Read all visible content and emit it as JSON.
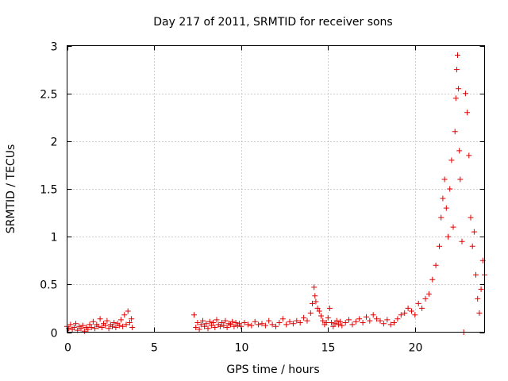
{
  "chart_data": {
    "type": "scatter",
    "title": "Day 217 of 2011, SRMTID for receiver sons",
    "xlabel": "GPS time / hours",
    "ylabel": "SRMTID / TECUs",
    "xlim": [
      0,
      24
    ],
    "ylim": [
      0,
      3
    ],
    "xticks": [
      0,
      5,
      10,
      15,
      20
    ],
    "yticks": [
      0,
      0.5,
      1,
      1.5,
      2,
      2.5,
      3
    ],
    "xtick_labels": [
      "0",
      "5",
      "10",
      "15",
      "20"
    ],
    "ytick_labels": [
      "0",
      "0.5",
      "1",
      "1.5",
      "2",
      "2.5",
      "3"
    ],
    "grid": true,
    "marker": "plus",
    "color": "#e00000",
    "points": [
      [
        0.0,
        0.06
      ],
      [
        0.1,
        0.04
      ],
      [
        0.2,
        0.08
      ],
      [
        0.3,
        0.03
      ],
      [
        0.4,
        0.05
      ],
      [
        0.5,
        0.09
      ],
      [
        0.6,
        0.02
      ],
      [
        0.7,
        0.06
      ],
      [
        0.8,
        0.04
      ],
      [
        0.9,
        0.07
      ],
      [
        1.0,
        0.01
      ],
      [
        1.1,
        0.05
      ],
      [
        1.2,
        0.03
      ],
      [
        1.3,
        0.08
      ],
      [
        1.4,
        0.05
      ],
      [
        1.5,
        0.11
      ],
      [
        1.6,
        0.04
      ],
      [
        1.7,
        0.08
      ],
      [
        1.8,
        0.06
      ],
      [
        1.9,
        0.14
      ],
      [
        2.0,
        0.05
      ],
      [
        2.1,
        0.09
      ],
      [
        2.2,
        0.07
      ],
      [
        2.3,
        0.12
      ],
      [
        2.4,
        0.04
      ],
      [
        2.5,
        0.08
      ],
      [
        2.6,
        0.06
      ],
      [
        2.7,
        0.1
      ],
      [
        2.8,
        0.05
      ],
      [
        2.9,
        0.09
      ],
      [
        3.0,
        0.07
      ],
      [
        3.1,
        0.13
      ],
      [
        3.2,
        0.06
      ],
      [
        3.3,
        0.18
      ],
      [
        3.4,
        0.08
      ],
      [
        3.5,
        0.22
      ],
      [
        3.6,
        0.1
      ],
      [
        3.7,
        0.14
      ],
      [
        3.75,
        0.05
      ],
      [
        7.3,
        0.18
      ],
      [
        7.4,
        0.05
      ],
      [
        7.5,
        0.1
      ],
      [
        7.6,
        0.03
      ],
      [
        7.7,
        0.08
      ],
      [
        7.8,
        0.12
      ],
      [
        7.9,
        0.06
      ],
      [
        8.0,
        0.09
      ],
      [
        8.1,
        0.04
      ],
      [
        8.2,
        0.11
      ],
      [
        8.3,
        0.07
      ],
      [
        8.4,
        0.1
      ],
      [
        8.5,
        0.05
      ],
      [
        8.6,
        0.13
      ],
      [
        8.7,
        0.08
      ],
      [
        8.8,
        0.06
      ],
      [
        8.9,
        0.1
      ],
      [
        9.0,
        0.07
      ],
      [
        9.1,
        0.12
      ],
      [
        9.2,
        0.05
      ],
      [
        9.3,
        0.09
      ],
      [
        9.4,
        0.08
      ],
      [
        9.5,
        0.11
      ],
      [
        9.6,
        0.06
      ],
      [
        9.7,
        0.1
      ],
      [
        9.8,
        0.07
      ],
      [
        9.9,
        0.09
      ],
      [
        10.0,
        0.06
      ],
      [
        10.2,
        0.1
      ],
      [
        10.4,
        0.08
      ],
      [
        10.6,
        0.07
      ],
      [
        10.8,
        0.11
      ],
      [
        11.0,
        0.08
      ],
      [
        11.2,
        0.09
      ],
      [
        11.4,
        0.07
      ],
      [
        11.6,
        0.12
      ],
      [
        11.8,
        0.08
      ],
      [
        12.0,
        0.06
      ],
      [
        12.2,
        0.1
      ],
      [
        12.4,
        0.14
      ],
      [
        12.6,
        0.08
      ],
      [
        12.8,
        0.11
      ],
      [
        13.0,
        0.09
      ],
      [
        13.2,
        0.12
      ],
      [
        13.4,
        0.1
      ],
      [
        13.6,
        0.15
      ],
      [
        13.8,
        0.12
      ],
      [
        14.0,
        0.2
      ],
      [
        14.1,
        0.3
      ],
      [
        14.2,
        0.47
      ],
      [
        14.25,
        0.38
      ],
      [
        14.3,
        0.32
      ],
      [
        14.4,
        0.25
      ],
      [
        14.5,
        0.22
      ],
      [
        14.6,
        0.17
      ],
      [
        14.7,
        0.12
      ],
      [
        14.8,
        0.08
      ],
      [
        14.9,
        0.1
      ],
      [
        15.0,
        0.15
      ],
      [
        15.1,
        0.25
      ],
      [
        15.2,
        0.1
      ],
      [
        15.3,
        0.06
      ],
      [
        15.4,
        0.09
      ],
      [
        15.5,
        0.12
      ],
      [
        15.6,
        0.08
      ],
      [
        15.7,
        0.11
      ],
      [
        15.8,
        0.07
      ],
      [
        16.0,
        0.1
      ],
      [
        16.2,
        0.13
      ],
      [
        16.4,
        0.08
      ],
      [
        16.6,
        0.11
      ],
      [
        16.8,
        0.14
      ],
      [
        17.0,
        0.1
      ],
      [
        17.2,
        0.16
      ],
      [
        17.4,
        0.12
      ],
      [
        17.6,
        0.18
      ],
      [
        17.8,
        0.14
      ],
      [
        18.0,
        0.12
      ],
      [
        18.2,
        0.09
      ],
      [
        18.4,
        0.13
      ],
      [
        18.6,
        0.08
      ],
      [
        18.8,
        0.1
      ],
      [
        19.0,
        0.14
      ],
      [
        19.2,
        0.18
      ],
      [
        19.4,
        0.2
      ],
      [
        19.6,
        0.25
      ],
      [
        19.8,
        0.22
      ],
      [
        20.0,
        0.18
      ],
      [
        20.2,
        0.3
      ],
      [
        20.4,
        0.25
      ],
      [
        20.6,
        0.35
      ],
      [
        20.8,
        0.4
      ],
      [
        21.0,
        0.55
      ],
      [
        21.2,
        0.7
      ],
      [
        21.4,
        0.9
      ],
      [
        21.5,
        1.2
      ],
      [
        21.6,
        1.4
      ],
      [
        21.7,
        1.6
      ],
      [
        21.8,
        1.3
      ],
      [
        21.9,
        1.0
      ],
      [
        22.0,
        1.5
      ],
      [
        22.1,
        1.8
      ],
      [
        22.2,
        1.1
      ],
      [
        22.3,
        2.1
      ],
      [
        22.35,
        2.45
      ],
      [
        22.4,
        2.75
      ],
      [
        22.45,
        2.9
      ],
      [
        22.5,
        2.55
      ],
      [
        22.55,
        1.9
      ],
      [
        22.6,
        1.6
      ],
      [
        22.7,
        0.95
      ],
      [
        22.8,
        0.0
      ],
      [
        22.9,
        2.5
      ],
      [
        23.0,
        2.3
      ],
      [
        23.1,
        1.85
      ],
      [
        23.2,
        1.2
      ],
      [
        23.3,
        0.9
      ],
      [
        23.4,
        1.05
      ],
      [
        23.5,
        0.6
      ],
      [
        23.6,
        0.35
      ],
      [
        23.7,
        0.2
      ],
      [
        23.8,
        0.45
      ],
      [
        23.9,
        0.75
      ],
      [
        24.0,
        0.6
      ]
    ]
  }
}
